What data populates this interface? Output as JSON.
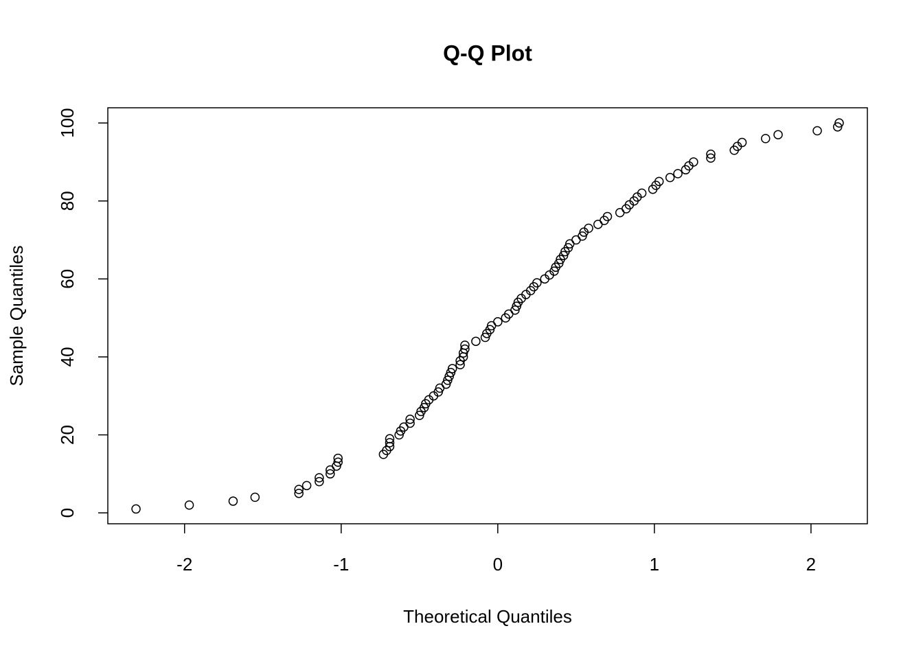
{
  "chart_data": {
    "type": "scatter",
    "title": "Q-Q Plot",
    "x_label": "Theoretical Quantiles",
    "y_label": "Sample Quantiles",
    "x": [
      -2.31,
      -1.97,
      -1.69,
      -1.55,
      -1.27,
      -1.27,
      -1.22,
      -1.14,
      -1.14,
      -1.07,
      -1.07,
      -1.03,
      -1.02,
      -1.02,
      -0.73,
      -0.71,
      -0.69,
      -0.69,
      -0.69,
      -0.63,
      -0.62,
      -0.6,
      -0.56,
      -0.56,
      -0.5,
      -0.49,
      -0.47,
      -0.46,
      -0.44,
      -0.41,
      -0.38,
      -0.37,
      -0.33,
      -0.32,
      -0.31,
      -0.3,
      -0.29,
      -0.24,
      -0.24,
      -0.22,
      -0.22,
      -0.21,
      -0.21,
      -0.14,
      -0.08,
      -0.07,
      -0.05,
      -0.04,
      0.0,
      0.05,
      0.07,
      0.11,
      0.12,
      0.13,
      0.15,
      0.18,
      0.21,
      0.23,
      0.25,
      0.3,
      0.33,
      0.36,
      0.37,
      0.39,
      0.4,
      0.42,
      0.43,
      0.45,
      0.46,
      0.5,
      0.54,
      0.55,
      0.58,
      0.64,
      0.68,
      0.7,
      0.78,
      0.82,
      0.84,
      0.87,
      0.89,
      0.92,
      0.99,
      1.01,
      1.03,
      1.1,
      1.15,
      1.2,
      1.22,
      1.25,
      1.36,
      1.36,
      1.51,
      1.53,
      1.56,
      1.71,
      1.79,
      2.04,
      2.17,
      2.18
    ],
    "values": [
      1,
      2,
      3,
      4,
      5,
      6,
      7,
      8,
      9,
      10,
      11,
      12,
      13,
      14,
      15,
      16,
      17,
      18,
      19,
      20,
      21,
      22,
      23,
      24,
      25,
      26,
      27,
      28,
      29,
      30,
      31,
      32,
      33,
      34,
      35,
      36,
      37,
      38,
      39,
      40,
      41,
      42,
      43,
      44,
      45,
      46,
      47,
      48,
      49,
      50,
      51,
      52,
      53,
      54,
      55,
      56,
      57,
      58,
      59,
      60,
      61,
      62,
      63,
      64,
      65,
      66,
      67,
      68,
      69,
      70,
      71,
      72,
      73,
      74,
      75,
      76,
      77,
      78,
      79,
      80,
      81,
      82,
      83,
      84,
      85,
      86,
      87,
      88,
      89,
      90,
      91,
      92,
      93,
      94,
      95,
      96,
      97,
      98,
      99,
      100
    ],
    "color": "#000000",
    "xlim": [
      -2.49,
      2.36
    ],
    "xticks": [
      -2,
      -1,
      0,
      1,
      2
    ],
    "ylim": [
      -2.8,
      103.9
    ],
    "yticks": [
      0,
      20,
      40,
      60,
      80,
      100
    ]
  }
}
